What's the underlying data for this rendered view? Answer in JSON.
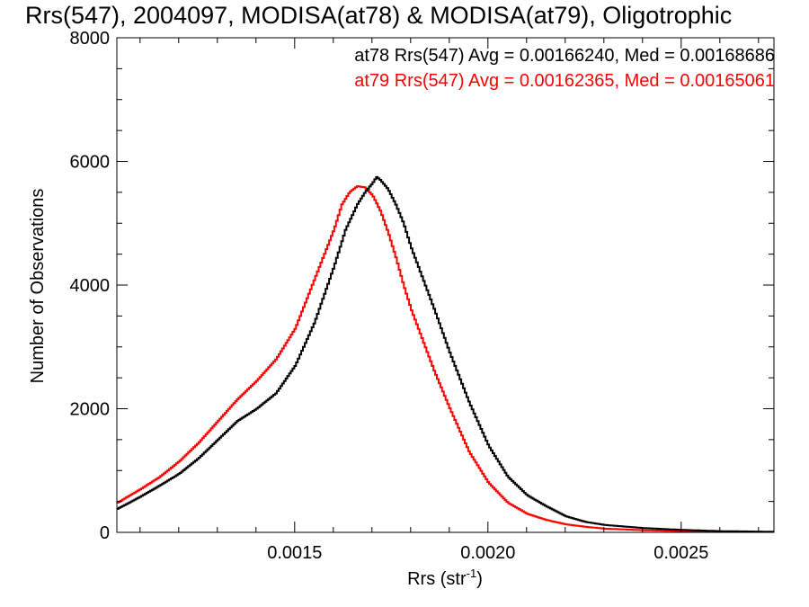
{
  "chart_data": {
    "type": "line",
    "title": "Rrs(547), 2004097, MODISA(at78) & MODISA(at79), Oligotrophic",
    "xlabel": "Rrs (str",
    "xlabel_superscript": "-1",
    "xlabel_suffix": ")",
    "ylabel": "Number of Observations",
    "xlim": [
      0.00104,
      0.00274
    ],
    "ylim": [
      0,
      8000
    ],
    "x_ticks": [
      {
        "value": 0.0015,
        "label": "0.0015"
      },
      {
        "value": 0.002,
        "label": "0.0020"
      },
      {
        "value": 0.0025,
        "label": "0.0025"
      }
    ],
    "y_ticks": [
      {
        "value": 0,
        "label": "0"
      },
      {
        "value": 2000,
        "label": "2000"
      },
      {
        "value": 4000,
        "label": "4000"
      },
      {
        "value": 6000,
        "label": "6000"
      },
      {
        "value": 8000,
        "label": "8000"
      }
    ],
    "grid": false,
    "legend_position": "top-right",
    "series": [
      {
        "name": "at78 Rrs(547) Avg = 0.00166240, Med = 0.00168686",
        "color": "#000000",
        "x": [
          0.00104,
          0.0011,
          0.00115,
          0.0012,
          0.00125,
          0.0013,
          0.00135,
          0.0014,
          0.00145,
          0.0015,
          0.00155,
          0.0016,
          0.00163,
          0.00166,
          0.00168,
          0.0017,
          0.00171,
          0.00172,
          0.00174,
          0.00176,
          0.00178,
          0.0018,
          0.00183,
          0.00186,
          0.0019,
          0.00195,
          0.002,
          0.00205,
          0.0021,
          0.00215,
          0.0022,
          0.00225,
          0.0023,
          0.0024,
          0.0025,
          0.0026,
          0.00274
        ],
        "y": [
          380,
          580,
          760,
          950,
          1200,
          1500,
          1800,
          2000,
          2250,
          2700,
          3400,
          4300,
          4900,
          5300,
          5500,
          5650,
          5750,
          5700,
          5550,
          5300,
          5000,
          4600,
          4100,
          3600,
          2900,
          2100,
          1400,
          900,
          600,
          420,
          260,
          170,
          120,
          70,
          40,
          20,
          10
        ]
      },
      {
        "name": "at79 Rrs(547) Avg = 0.00162365, Med = 0.00165061",
        "color": "#ff0000",
        "x": [
          0.00104,
          0.0011,
          0.00115,
          0.0012,
          0.00125,
          0.0013,
          0.00135,
          0.0014,
          0.00145,
          0.0015,
          0.00155,
          0.0016,
          0.00162,
          0.00164,
          0.00166,
          0.00168,
          0.0017,
          0.00172,
          0.00174,
          0.00176,
          0.00178,
          0.0018,
          0.00183,
          0.00186,
          0.0019,
          0.00195,
          0.002,
          0.00205,
          0.0021,
          0.00215,
          0.0022,
          0.00225,
          0.0023,
          0.0024,
          0.0025,
          0.0026,
          0.00274
        ],
        "y": [
          480,
          700,
          900,
          1150,
          1450,
          1800,
          2150,
          2450,
          2800,
          3300,
          4100,
          4900,
          5300,
          5500,
          5600,
          5580,
          5450,
          5200,
          4850,
          4450,
          4000,
          3600,
          3100,
          2600,
          2000,
          1300,
          800,
          480,
          300,
          200,
          130,
          90,
          60,
          35,
          20,
          10,
          5
        ]
      }
    ]
  }
}
